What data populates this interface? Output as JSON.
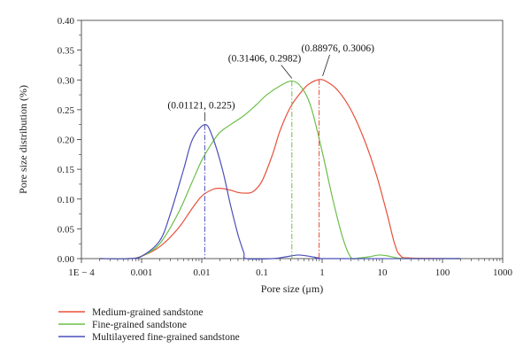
{
  "chart_data": {
    "type": "line",
    "xlabel": "Pore size (μm)",
    "ylabel": "Pore size distribution (%)",
    "xscale": "log",
    "xlim": [
      0.0001,
      1000
    ],
    "ylim": [
      0,
      0.4
    ],
    "x_ticks": [
      {
        "value": 0.0001,
        "label": "1E − 4"
      },
      {
        "value": 0.001,
        "label": "0.001"
      },
      {
        "value": 0.01,
        "label": "0.01"
      },
      {
        "value": 0.1,
        "label": "0.1"
      },
      {
        "value": 1,
        "label": "1"
      },
      {
        "value": 10,
        "label": "10"
      },
      {
        "value": 100,
        "label": "100"
      },
      {
        "value": 1000,
        "label": "1000"
      }
    ],
    "y_ticks": [
      {
        "value": 0.0,
        "label": "0.00"
      },
      {
        "value": 0.05,
        "label": "0.05"
      },
      {
        "value": 0.1,
        "label": "0.10"
      },
      {
        "value": 0.15,
        "label": "0.15"
      },
      {
        "value": 0.2,
        "label": "0.20"
      },
      {
        "value": 0.25,
        "label": "0.25"
      },
      {
        "value": 0.3,
        "label": "0.30"
      },
      {
        "value": 0.35,
        "label": "0.35"
      },
      {
        "value": 0.4,
        "label": "0.40"
      }
    ],
    "grid": false,
    "legend_position": "bottom-left",
    "series": [
      {
        "name": "Medium-grained sandstone",
        "color": "#e8503a",
        "points": [
          [
            0.0002,
            0
          ],
          [
            0.0006,
            0
          ],
          [
            0.001,
            0.004
          ],
          [
            0.002,
            0.02
          ],
          [
            0.004,
            0.05
          ],
          [
            0.007,
            0.085
          ],
          [
            0.01,
            0.105
          ],
          [
            0.015,
            0.116
          ],
          [
            0.02,
            0.118
          ],
          [
            0.03,
            0.115
          ],
          [
            0.04,
            0.111
          ],
          [
            0.05,
            0.11
          ],
          [
            0.07,
            0.112
          ],
          [
            0.1,
            0.13
          ],
          [
            0.15,
            0.175
          ],
          [
            0.2,
            0.215
          ],
          [
            0.3,
            0.255
          ],
          [
            0.45,
            0.28
          ],
          [
            0.6,
            0.293
          ],
          [
            0.88976,
            0.3006
          ],
          [
            1.2,
            0.297
          ],
          [
            1.8,
            0.283
          ],
          [
            3,
            0.25
          ],
          [
            5,
            0.2
          ],
          [
            8,
            0.14
          ],
          [
            12,
            0.075
          ],
          [
            16,
            0.025
          ],
          [
            20,
            0.005
          ],
          [
            30,
            0.001
          ],
          [
            200,
            0
          ]
        ]
      },
      {
        "name": "Fine-grained sandstone",
        "color": "#6cbf4a",
        "points": [
          [
            0.0002,
            0
          ],
          [
            0.0006,
            0
          ],
          [
            0.001,
            0.004
          ],
          [
            0.002,
            0.025
          ],
          [
            0.004,
            0.075
          ],
          [
            0.007,
            0.13
          ],
          [
            0.01,
            0.165
          ],
          [
            0.015,
            0.195
          ],
          [
            0.02,
            0.212
          ],
          [
            0.03,
            0.225
          ],
          [
            0.05,
            0.24
          ],
          [
            0.08,
            0.258
          ],
          [
            0.12,
            0.275
          ],
          [
            0.2,
            0.29
          ],
          [
            0.31406,
            0.2982
          ],
          [
            0.45,
            0.288
          ],
          [
            0.65,
            0.255
          ],
          [
            1,
            0.18
          ],
          [
            1.5,
            0.1
          ],
          [
            2.2,
            0.035
          ],
          [
            3,
            0.002
          ],
          [
            4,
            0.001
          ],
          [
            6,
            0.003
          ],
          [
            9,
            0.006
          ],
          [
            13,
            0.004
          ],
          [
            18,
            0.001
          ],
          [
            30,
            0
          ],
          [
            200,
            0
          ]
        ]
      },
      {
        "name": "Multilayered fine-grained sandstone",
        "color": "#4a4fb8",
        "points": [
          [
            0.0002,
            0
          ],
          [
            0.0006,
            0
          ],
          [
            0.001,
            0.004
          ],
          [
            0.002,
            0.03
          ],
          [
            0.003,
            0.075
          ],
          [
            0.005,
            0.15
          ],
          [
            0.007,
            0.2
          ],
          [
            0.01121,
            0.225
          ],
          [
            0.015,
            0.205
          ],
          [
            0.022,
            0.15
          ],
          [
            0.03,
            0.09
          ],
          [
            0.04,
            0.04
          ],
          [
            0.05,
            0.01
          ],
          [
            0.055,
            0
          ],
          [
            0.15,
            0
          ],
          [
            0.25,
            0.003
          ],
          [
            0.4,
            0.006
          ],
          [
            0.6,
            0.004
          ],
          [
            0.9,
            0.001
          ],
          [
            1.2,
            0
          ],
          [
            200,
            0
          ]
        ]
      }
    ],
    "annotations": [
      {
        "text": "(0.01121, 0.225)",
        "x": 0.01121,
        "y": 0.225,
        "series": 2
      },
      {
        "text": "(0.31406, 0.2982)",
        "x": 0.31406,
        "y": 0.2982,
        "series": 1
      },
      {
        "text": "(0.88976, 0.3006)",
        "x": 0.88976,
        "y": 0.3006,
        "series": 0
      }
    ]
  }
}
